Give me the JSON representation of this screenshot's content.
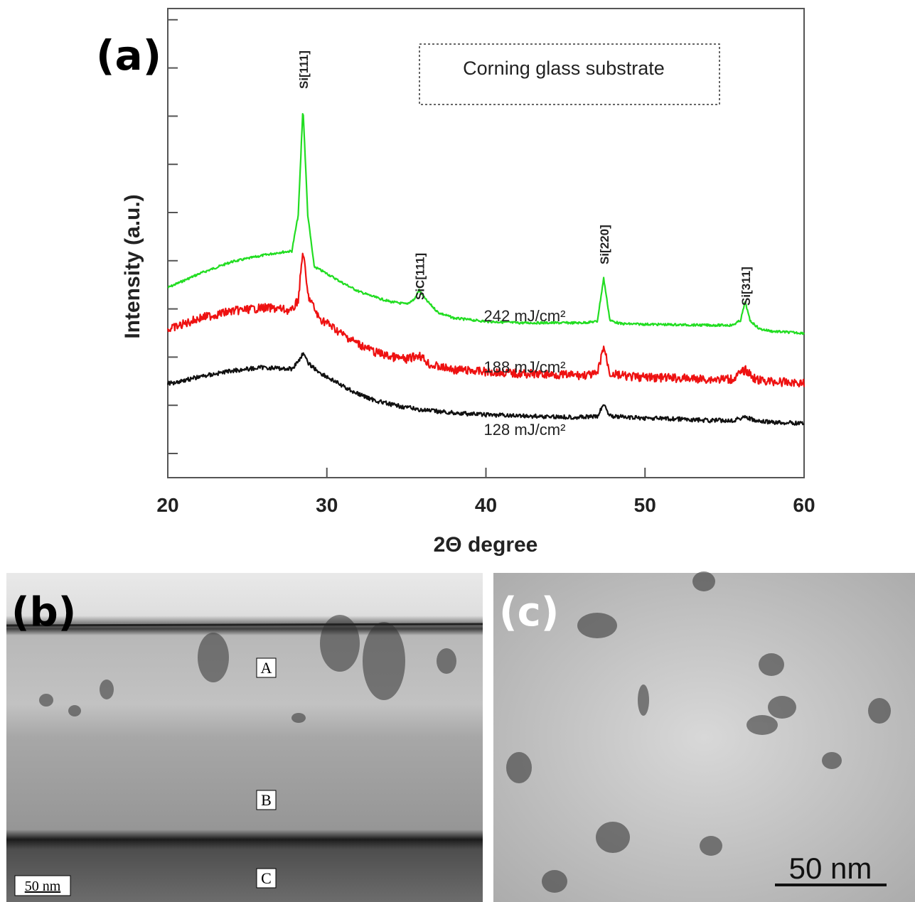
{
  "panels": {
    "a": {
      "label": "(a)"
    },
    "b": {
      "label": "(b)",
      "region_labels": [
        "A",
        "B",
        "C"
      ],
      "scale_bar": "50 nm"
    },
    "c": {
      "label": "(c)",
      "scale_bar": "50 nm"
    }
  },
  "colors": {
    "green": "#22dd22",
    "red": "#ee1111",
    "black": "#111111"
  },
  "chart_data": {
    "type": "line",
    "title": "",
    "xlabel": "2Θ degree",
    "ylabel": "Intensity (a.u.)",
    "xlim": [
      20,
      60
    ],
    "x_ticks": [
      "20",
      "30",
      "40",
      "50",
      "60"
    ],
    "legend_box": "Corning glass substrate",
    "legend_placement": "top-right",
    "grid": false,
    "peak_labels": [
      {
        "text": "Si[111]",
        "x": 28.5
      },
      {
        "text": "SiC[111]",
        "x": 35.8
      },
      {
        "text": "Si[220]",
        "x": 47.4
      },
      {
        "text": "Si[311]",
        "x": 56.3
      }
    ],
    "series": [
      {
        "name": "242 mJ/cm²",
        "color": "#22dd22",
        "x": [
          20,
          22,
          24,
          26,
          27,
          27.8,
          28.2,
          28.5,
          28.8,
          29.2,
          30,
          31,
          32,
          33,
          34,
          35,
          35.5,
          35.8,
          36.2,
          37,
          38,
          40,
          42,
          44,
          46,
          47,
          47.4,
          47.8,
          48.5,
          50,
          52,
          54,
          55.5,
          56,
          56.3,
          56.6,
          57.2,
          58,
          59,
          60
        ],
        "y": [
          0.405,
          0.435,
          0.46,
          0.474,
          0.48,
          0.483,
          0.56,
          0.79,
          0.56,
          0.45,
          0.435,
          0.415,
          0.397,
          0.385,
          0.375,
          0.37,
          0.38,
          0.4,
          0.38,
          0.352,
          0.34,
          0.333,
          0.33,
          0.33,
          0.33,
          0.333,
          0.425,
          0.335,
          0.328,
          0.327,
          0.326,
          0.325,
          0.325,
          0.335,
          0.375,
          0.335,
          0.317,
          0.312,
          0.31,
          0.308
        ]
      },
      {
        "name": "188 mJ/cm²",
        "color": "#ee1111",
        "x": [
          20,
          22,
          24,
          26,
          27,
          27.8,
          28.2,
          28.5,
          28.8,
          29.5,
          30,
          31,
          32,
          33,
          34,
          35,
          35.8,
          36.5,
          38,
          40,
          42,
          44,
          46,
          47,
          47.4,
          47.8,
          49,
          50,
          52,
          54,
          55.5,
          56.3,
          57,
          58,
          59,
          60
        ],
        "y": [
          0.315,
          0.34,
          0.355,
          0.362,
          0.36,
          0.355,
          0.38,
          0.485,
          0.39,
          0.34,
          0.33,
          0.305,
          0.285,
          0.268,
          0.258,
          0.252,
          0.262,
          0.24,
          0.23,
          0.226,
          0.222,
          0.22,
          0.218,
          0.22,
          0.28,
          0.222,
          0.215,
          0.214,
          0.212,
          0.21,
          0.21,
          0.23,
          0.208,
          0.205,
          0.203,
          0.202
        ]
      },
      {
        "name": "128 mJ/cm²",
        "color": "#111111",
        "x": [
          20,
          22,
          24,
          26,
          27,
          27.8,
          28.2,
          28.5,
          28.8,
          29.5,
          30,
          31,
          32,
          33,
          34,
          35,
          36,
          38,
          40,
          42,
          44,
          46,
          47,
          47.4,
          47.8,
          49,
          50,
          52,
          54,
          55.5,
          56.3,
          57,
          58,
          59,
          60
        ],
        "y": [
          0.2,
          0.215,
          0.228,
          0.235,
          0.233,
          0.232,
          0.248,
          0.265,
          0.245,
          0.225,
          0.215,
          0.195,
          0.178,
          0.165,
          0.156,
          0.15,
          0.144,
          0.138,
          0.134,
          0.132,
          0.13,
          0.129,
          0.13,
          0.157,
          0.132,
          0.128,
          0.127,
          0.125,
          0.122,
          0.122,
          0.13,
          0.12,
          0.118,
          0.117,
          0.116
        ]
      }
    ]
  }
}
